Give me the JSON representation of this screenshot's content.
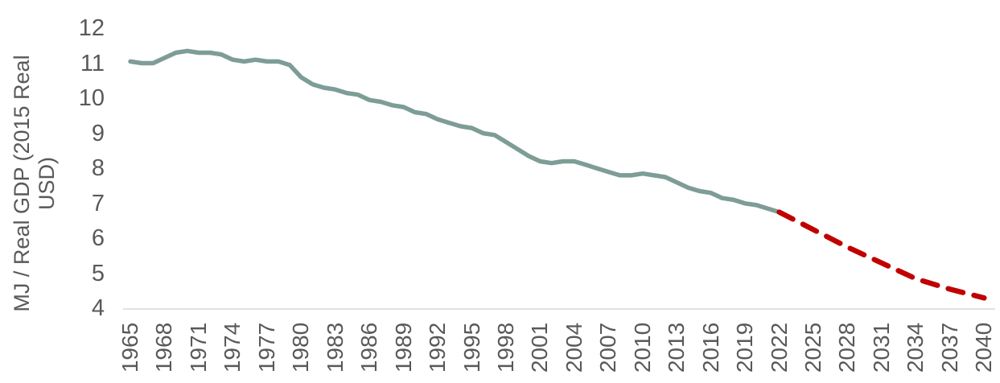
{
  "chart_data": {
    "type": "line",
    "title": "",
    "ylabel": "MJ / Real GDP (2015 Real USD)",
    "ylabel_lines": [
      "MJ / Real GDP (2015 Real",
      "USD)"
    ],
    "xlabel": "",
    "ylim": [
      4,
      12
    ],
    "xlim": [
      1965,
      2040
    ],
    "y_ticks": [
      12,
      11,
      10,
      9,
      8,
      7,
      6,
      5,
      4
    ],
    "x_ticks": [
      1965,
      1968,
      1971,
      1974,
      1977,
      1980,
      1983,
      1986,
      1989,
      1992,
      1995,
      1998,
      2001,
      2004,
      2007,
      2010,
      2013,
      2016,
      2019,
      2022,
      2025,
      2028,
      2031,
      2034,
      2037,
      2040
    ],
    "grid": "off",
    "legend": "none",
    "axis_line_color": "#d9d9d9",
    "tick_label_color": "#595959",
    "series": [
      {
        "name": "historical-energy-intensity",
        "style": "solid",
        "color": "#7d9d96",
        "x": [
          1965,
          1966,
          1967,
          1968,
          1969,
          1970,
          1971,
          1972,
          1973,
          1974,
          1975,
          1976,
          1977,
          1978,
          1979,
          1980,
          1981,
          1982,
          1983,
          1984,
          1985,
          1986,
          1987,
          1988,
          1989,
          1990,
          1991,
          1992,
          1993,
          1994,
          1995,
          1996,
          1997,
          1998,
          1999,
          2000,
          2001,
          2002,
          2003,
          2004,
          2005,
          2006,
          2007,
          2008,
          2009,
          2010,
          2011,
          2012,
          2013,
          2014,
          2015,
          2016,
          2017,
          2018,
          2019,
          2020,
          2021,
          2022
        ],
        "values": [
          11.05,
          11.0,
          11.0,
          11.15,
          11.3,
          11.35,
          11.3,
          11.3,
          11.25,
          11.1,
          11.05,
          11.1,
          11.05,
          11.05,
          10.95,
          10.6,
          10.4,
          10.3,
          10.25,
          10.15,
          10.1,
          9.95,
          9.9,
          9.8,
          9.75,
          9.6,
          9.55,
          9.4,
          9.3,
          9.2,
          9.15,
          9.0,
          8.95,
          8.75,
          8.55,
          8.35,
          8.2,
          8.15,
          8.2,
          8.2,
          8.1,
          8.0,
          7.9,
          7.8,
          7.8,
          7.85,
          7.8,
          7.75,
          7.6,
          7.45,
          7.35,
          7.3,
          7.15,
          7.1,
          7.0,
          6.95,
          6.85,
          6.75
        ]
      },
      {
        "name": "projected-energy-intensity",
        "style": "dashed",
        "color": "#c00000",
        "x": [
          2022,
          2025,
          2028,
          2031,
          2034,
          2037,
          2040
        ],
        "values": [
          6.75,
          6.25,
          5.75,
          5.3,
          4.85,
          4.55,
          4.3
        ]
      }
    ]
  }
}
